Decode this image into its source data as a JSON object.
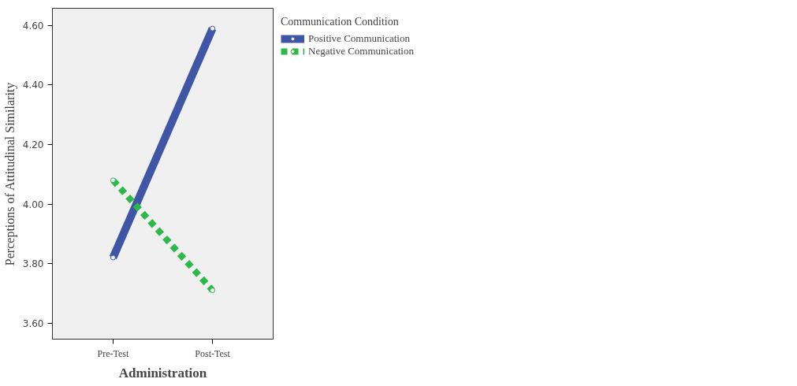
{
  "chart_data": {
    "type": "line",
    "xlabel": "Administration",
    "ylabel": "Perceptions of Attitudinal Similarity",
    "legend_title": "Communication Condition",
    "categories": [
      "Pre-Test",
      "Post-Test"
    ],
    "series": [
      {
        "name": "Positive Communication",
        "color": "#3f56a6",
        "values": [
          3.82,
          4.59
        ],
        "line_style": "solid"
      },
      {
        "name": "Negative Communication",
        "color": "#2db84a",
        "values": [
          4.08,
          3.71
        ],
        "line_style": "dashed"
      }
    ],
    "ylim": [
      3.546,
      4.658
    ],
    "yticks": [
      {
        "value": 3.6,
        "label": "3.60"
      },
      {
        "value": 3.8,
        "label": "3.80"
      },
      {
        "value": 4.0,
        "label": "4.00"
      },
      {
        "value": 4.2,
        "label": "4.20"
      },
      {
        "value": 4.4,
        "label": "4.40"
      },
      {
        "value": 4.6,
        "label": "4.60"
      }
    ],
    "grid": false,
    "legend": "top right",
    "marker": "circle"
  }
}
